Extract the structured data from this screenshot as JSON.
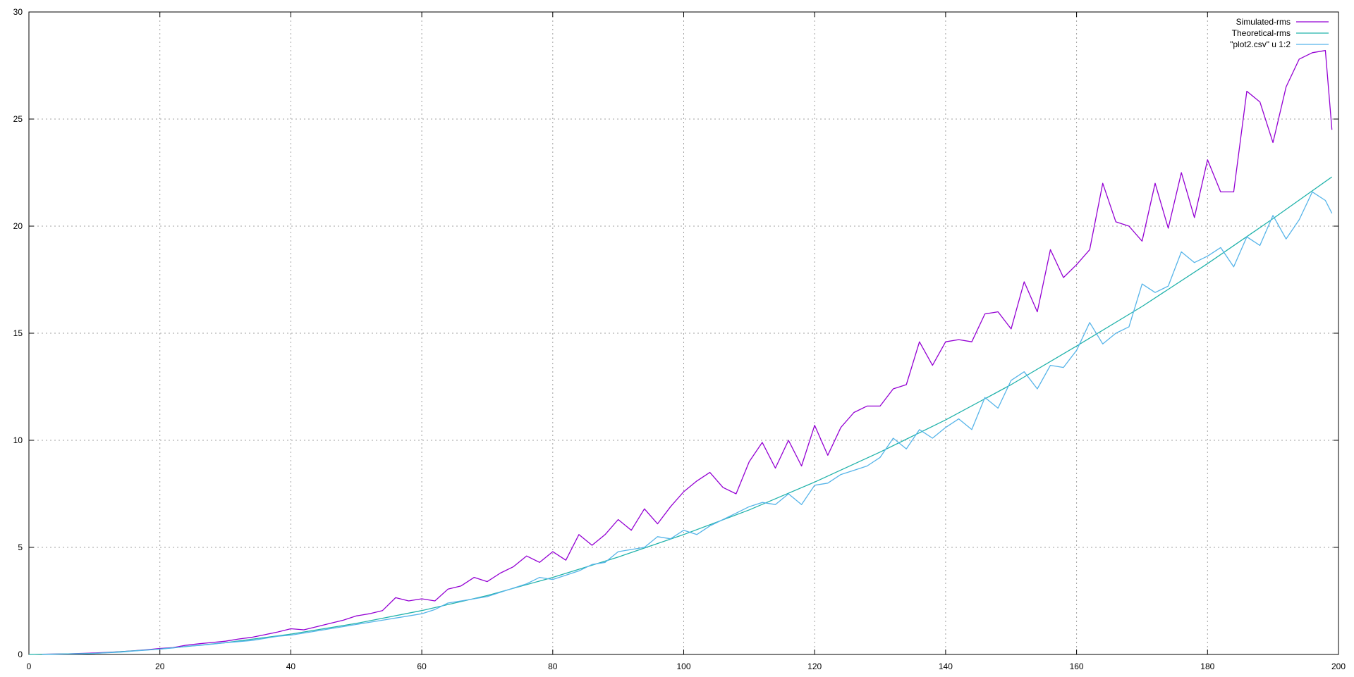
{
  "chart_data": {
    "type": "line",
    "title": "",
    "xlabel": "",
    "ylabel": "",
    "xlim": [
      0,
      200
    ],
    "ylim": [
      0,
      30
    ],
    "x_ticks": [
      0,
      20,
      40,
      60,
      80,
      100,
      120,
      140,
      160,
      180,
      200
    ],
    "y_ticks": [
      0,
      5,
      10,
      15,
      20,
      25,
      30
    ],
    "grid": true,
    "grid_style": "dotted",
    "legend_position": "top-right",
    "series": [
      {
        "name": "Simulated-rms",
        "color": "#9400d3",
        "x": [
          2,
          4,
          6,
          8,
          10,
          12,
          14,
          16,
          18,
          20,
          22,
          24,
          26,
          28,
          30,
          32,
          34,
          36,
          38,
          40,
          42,
          44,
          46,
          48,
          50,
          52,
          54,
          56,
          58,
          60,
          62,
          64,
          66,
          68,
          70,
          72,
          74,
          76,
          78,
          80,
          82,
          84,
          86,
          88,
          90,
          92,
          94,
          96,
          98,
          100,
          102,
          104,
          106,
          108,
          110,
          112,
          114,
          116,
          118,
          120,
          122,
          124,
          126,
          128,
          130,
          132,
          134,
          136,
          138,
          140,
          142,
          144,
          146,
          148,
          150,
          152,
          154,
          156,
          158,
          160,
          162,
          164,
          166,
          168,
          170,
          172,
          174,
          176,
          178,
          180,
          182,
          184,
          186,
          188,
          190,
          192,
          194,
          196,
          198,
          199
        ],
        "y": [
          0.01,
          0.02,
          0.03,
          0.05,
          0.07,
          0.1,
          0.13,
          0.17,
          0.22,
          0.28,
          0.32,
          0.43,
          0.5,
          0.56,
          0.62,
          0.72,
          0.8,
          0.92,
          1.05,
          1.2,
          1.15,
          1.3,
          1.45,
          1.6,
          1.8,
          1.9,
          2.05,
          2.65,
          2.5,
          2.6,
          2.5,
          3.05,
          3.2,
          3.6,
          3.4,
          3.8,
          4.1,
          4.6,
          4.3,
          4.8,
          4.4,
          5.6,
          5.1,
          5.6,
          6.3,
          5.8,
          6.8,
          6.1,
          6.9,
          7.6,
          8.1,
          8.5,
          7.8,
          7.5,
          9.0,
          9.9,
          8.7,
          10.0,
          8.8,
          10.7,
          9.3,
          10.6,
          11.3,
          11.6,
          11.6,
          12.4,
          12.6,
          14.6,
          13.5,
          14.6,
          14.7,
          14.6,
          15.9,
          16.0,
          15.2,
          17.4,
          16.0,
          18.9,
          17.6,
          18.2,
          18.9,
          22.0,
          20.2,
          20.0,
          19.3,
          22.0,
          19.9,
          22.5,
          20.4,
          23.1,
          21.6,
          21.6,
          26.3,
          25.8,
          23.9,
          26.5,
          27.8,
          28.1,
          28.2,
          24.5
        ]
      },
      {
        "name": "Theoretical-rms",
        "color": "#20b2aa",
        "x": [
          0,
          10,
          20,
          30,
          40,
          50,
          60,
          70,
          80,
          90,
          100,
          110,
          120,
          130,
          140,
          150,
          160,
          170,
          180,
          190,
          199
        ],
        "y": [
          0.0,
          0.05,
          0.25,
          0.55,
          0.95,
          1.45,
          2.05,
          2.75,
          3.6,
          4.55,
          5.6,
          6.75,
          8.05,
          9.45,
          10.95,
          12.6,
          14.4,
          16.25,
          18.25,
          20.35,
          22.3
        ]
      },
      {
        "name": "\"plot2.csv\" u 1:2",
        "color": "#56b4e9",
        "x": [
          2,
          4,
          6,
          8,
          10,
          12,
          14,
          16,
          18,
          20,
          22,
          24,
          26,
          28,
          30,
          32,
          34,
          36,
          38,
          40,
          42,
          44,
          46,
          48,
          50,
          52,
          54,
          56,
          58,
          60,
          62,
          64,
          66,
          68,
          70,
          72,
          74,
          76,
          78,
          80,
          82,
          84,
          86,
          88,
          90,
          92,
          94,
          96,
          98,
          100,
          102,
          104,
          106,
          108,
          110,
          112,
          114,
          116,
          118,
          120,
          122,
          124,
          126,
          128,
          130,
          132,
          134,
          136,
          138,
          140,
          142,
          144,
          146,
          148,
          150,
          152,
          154,
          156,
          158,
          160,
          162,
          164,
          166,
          168,
          170,
          172,
          174,
          176,
          178,
          180,
          182,
          184,
          186,
          188,
          190,
          192,
          194,
          196,
          198,
          199
        ],
        "y": [
          0.0,
          0.01,
          0.02,
          0.03,
          0.05,
          0.08,
          0.11,
          0.16,
          0.2,
          0.25,
          0.3,
          0.38,
          0.42,
          0.48,
          0.55,
          0.6,
          0.65,
          0.75,
          0.85,
          0.9,
          1.0,
          1.1,
          1.2,
          1.3,
          1.4,
          1.5,
          1.6,
          1.7,
          1.8,
          1.9,
          2.1,
          2.4,
          2.5,
          2.6,
          2.7,
          2.9,
          3.1,
          3.3,
          3.6,
          3.5,
          3.7,
          3.9,
          4.2,
          4.3,
          4.8,
          4.9,
          5.0,
          5.5,
          5.4,
          5.8,
          5.6,
          6.0,
          6.3,
          6.6,
          6.9,
          7.1,
          7.0,
          7.5,
          7.0,
          7.9,
          8.0,
          8.4,
          8.6,
          8.8,
          9.2,
          10.1,
          9.6,
          10.5,
          10.1,
          10.6,
          11.0,
          10.5,
          12.0,
          11.5,
          12.8,
          13.2,
          12.4,
          13.5,
          13.4,
          14.2,
          15.5,
          14.5,
          15.0,
          15.3,
          17.3,
          16.9,
          17.2,
          18.8,
          18.3,
          18.6,
          19.0,
          18.1,
          19.5,
          19.1,
          20.5,
          19.4,
          20.3,
          21.6,
          21.2,
          20.6
        ]
      }
    ]
  }
}
